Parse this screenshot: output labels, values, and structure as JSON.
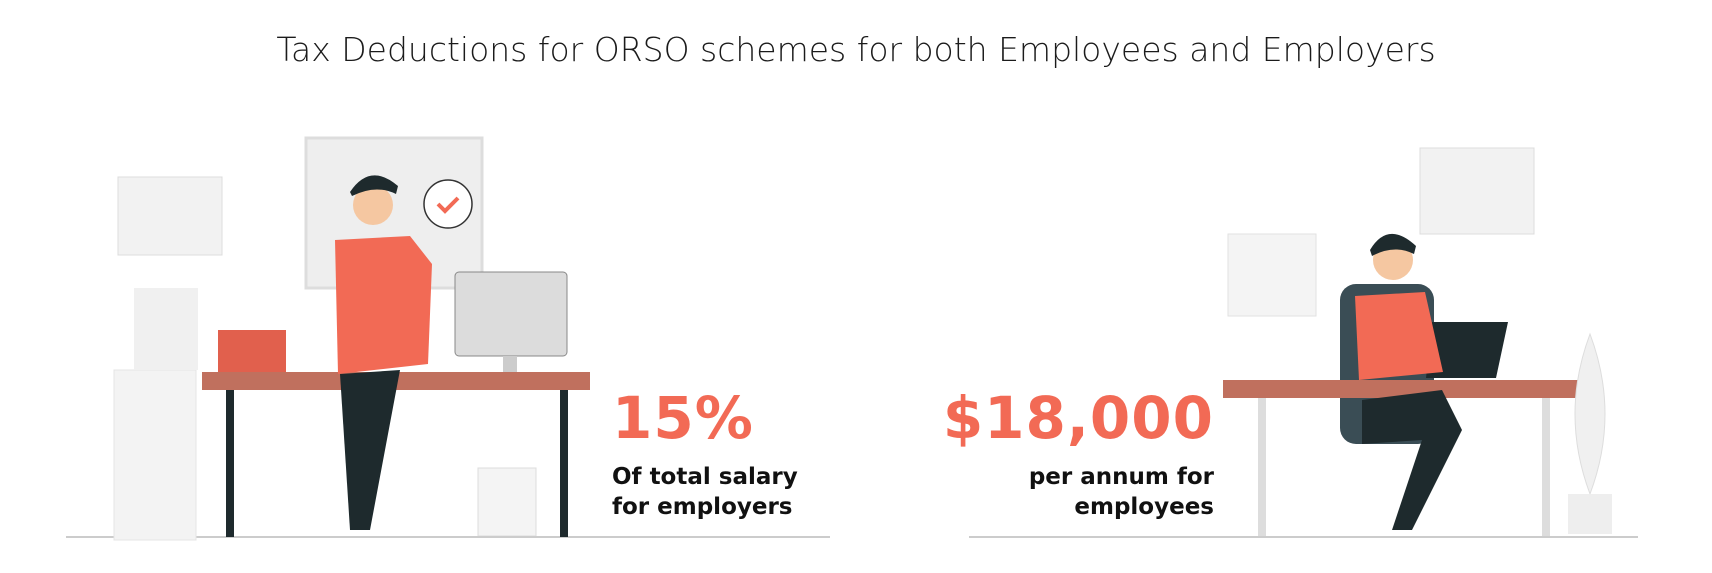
{
  "title": "Tax Deductions for ORSO schemes for both Employees and Employers",
  "stats": [
    {
      "value": "15%",
      "caption": "Of total salary for employers"
    },
    {
      "value": "$18,000",
      "caption": "per annum for employees"
    }
  ]
}
